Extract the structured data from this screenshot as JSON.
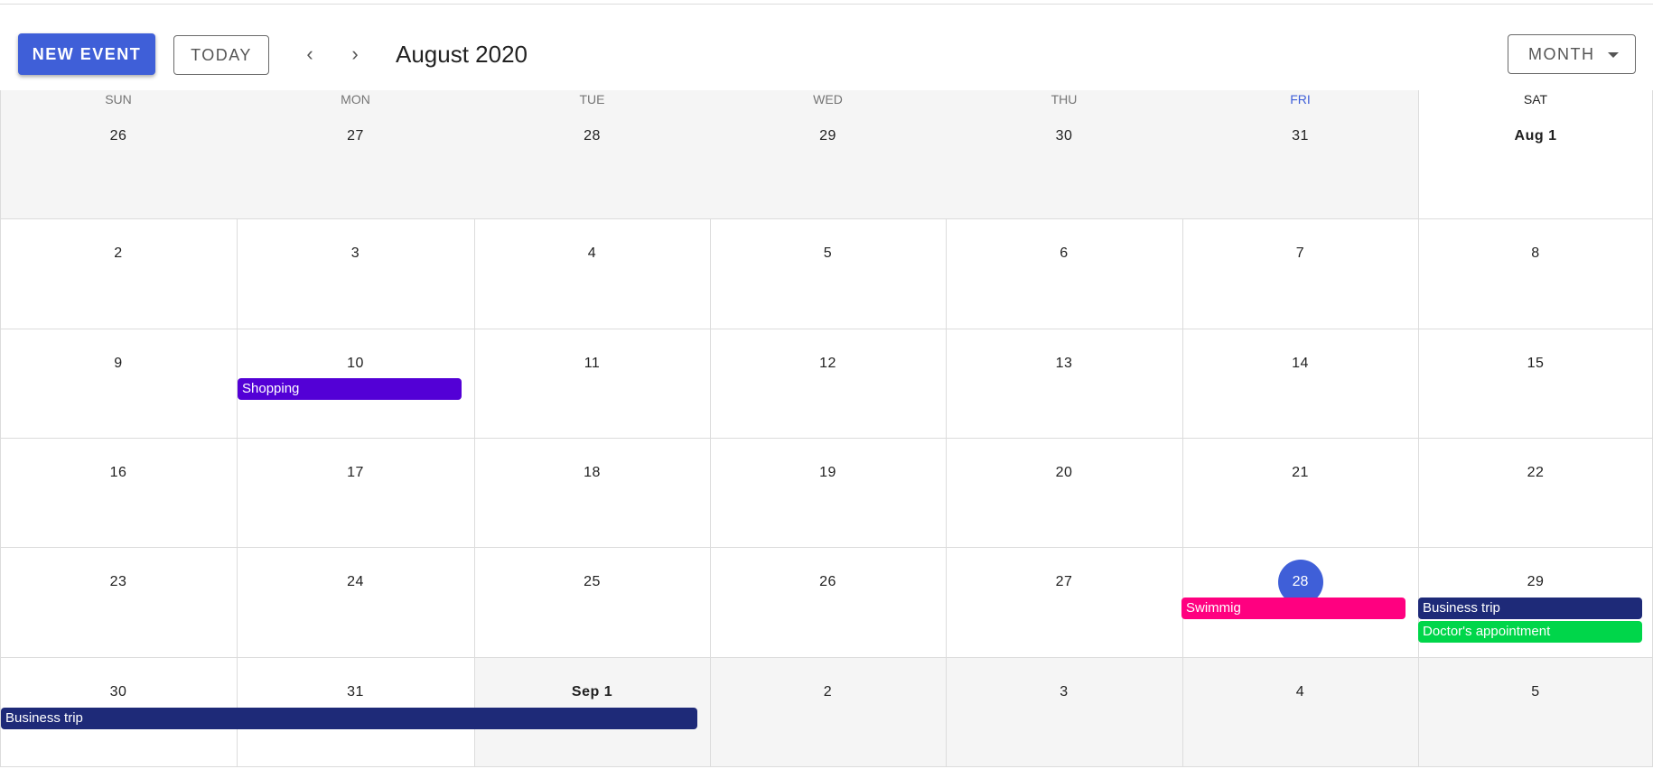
{
  "toolbar": {
    "new_event_label": "NEW EVENT",
    "today_label": "TODAY",
    "prev_icon": "‹",
    "next_icon": "›",
    "title": "August 2020",
    "view_label": "MONTH"
  },
  "weekdays": [
    "SUN",
    "MON",
    "TUE",
    "WED",
    "THU",
    "FRI",
    "SAT"
  ],
  "weeks": [
    [
      "26",
      "27",
      "28",
      "29",
      "30",
      "31",
      "Aug 1"
    ],
    [
      "2",
      "3",
      "4",
      "5",
      "6",
      "7",
      "8"
    ],
    [
      "9",
      "10",
      "11",
      "12",
      "13",
      "14",
      "15"
    ],
    [
      "16",
      "17",
      "18",
      "19",
      "20",
      "21",
      "22"
    ],
    [
      "23",
      "24",
      "25",
      "26",
      "27",
      "28",
      "29"
    ],
    [
      "30",
      "31",
      "Sep 1",
      "2",
      "3",
      "4",
      "5"
    ]
  ],
  "today": "28",
  "events": [
    {
      "title": "Shopping",
      "color": "#5300d6"
    },
    {
      "title": "Swimmig",
      "color": "#ff0080"
    },
    {
      "title": "Business trip",
      "color": "#1e2a78"
    },
    {
      "title": "Doctor's appointment",
      "color": "#00d64a"
    },
    {
      "title": "Business trip",
      "color": "#1e2a78"
    }
  ],
  "colors": {
    "primary": "#3f5fd8",
    "grid_line": "#dcdcdc",
    "outside_month": "#f5f5f5"
  }
}
